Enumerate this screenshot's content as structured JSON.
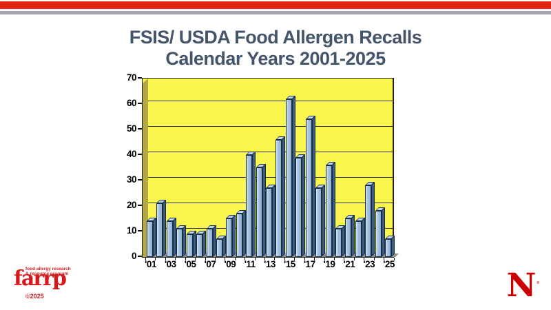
{
  "slide": {
    "title_line1": "FSIS/ USDA Food Allergen Recalls",
    "title_line2": "Calendar Years 2001-2025"
  },
  "chart_data": {
    "type": "bar",
    "title": "FSIS/ USDA Food Allergen Recalls Calendar Years 2001-2025",
    "categories": [
      "2001",
      "2002",
      "2003",
      "2004",
      "2005",
      "2006",
      "2007",
      "2008",
      "2009",
      "2010",
      "2011",
      "2012",
      "2013",
      "2014",
      "2015",
      "2016",
      "2017",
      "2018",
      "2019",
      "2020",
      "2021",
      "2022",
      "2023",
      "2024",
      "2025"
    ],
    "values": [
      14,
      21,
      14,
      11,
      9,
      9,
      11,
      7,
      15,
      17,
      40,
      35,
      27,
      46,
      62,
      39,
      54,
      27,
      36,
      11,
      15,
      14,
      28,
      18,
      7
    ],
    "x_tick_labels": [
      "'01",
      "'03",
      "'05",
      "'07",
      "'09",
      "'11",
      "'13",
      "'15",
      "'17",
      "'19",
      "'21",
      "'23",
      "'25"
    ],
    "y_ticks": [
      0,
      10,
      20,
      30,
      40,
      50,
      60,
      70
    ],
    "ylim": [
      0,
      70
    ],
    "xlabel": "",
    "ylabel": "",
    "grid": "horizontal",
    "legend": "none",
    "style": "3d-column",
    "colors": {
      "plot_background": "#F9F64E",
      "side_wall": "#B3A845",
      "bar_front": "#A9C4E0",
      "bar_side": "#3C5C80",
      "bar_top": "#BFD5EA"
    }
  },
  "footer": {
    "farrp_tagline_line1": "food allergy research",
    "farrp_tagline_line2": "& resource program",
    "farrp_wordmark": "farrp",
    "farrp_copyright": "©2025",
    "nebraska_n": "N",
    "nebraska_reg": "®"
  },
  "colors": {
    "banner_red": "#E32412",
    "banner_gray": "#A6A6B0",
    "title_text": "#44546A",
    "farrp_red": "#D6181C",
    "nebraska_red": "#CC0001"
  }
}
